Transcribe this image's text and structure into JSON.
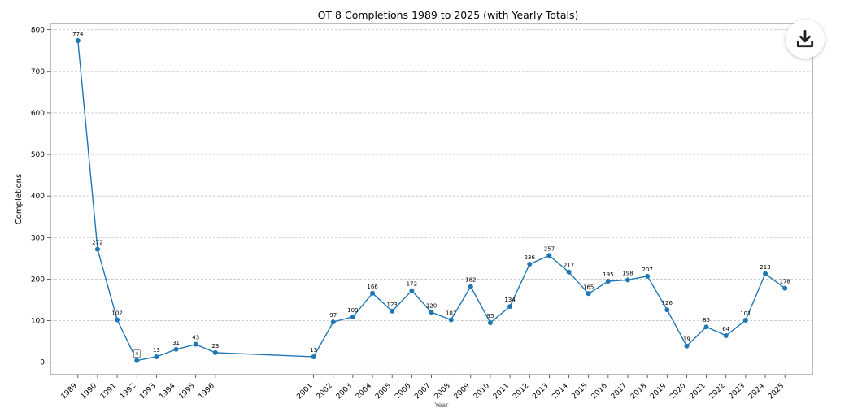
{
  "chart_data": {
    "type": "line",
    "title": "OT 8 Completions 1989 to 2025 (with Yearly Totals)",
    "xlabel": "Year",
    "ylabel": "Completions",
    "x": [
      1989,
      1990,
      1991,
      1992,
      1993,
      1994,
      1995,
      1996,
      2001,
      2002,
      2003,
      2004,
      2005,
      2006,
      2007,
      2008,
      2009,
      2010,
      2011,
      2012,
      2013,
      2014,
      2015,
      2016,
      2017,
      2018,
      2019,
      2020,
      2021,
      2022,
      2023,
      2024,
      2025
    ],
    "values": [
      774,
      272,
      102,
      4,
      13,
      31,
      43,
      23,
      13,
      97,
      109,
      166,
      123,
      172,
      120,
      102,
      182,
      95,
      134,
      236,
      257,
      217,
      165,
      195,
      198,
      207,
      126,
      39,
      85,
      64,
      101,
      213,
      178
    ],
    "xlim": [
      1987.6,
      2026.4
    ],
    "ylim": [
      -30,
      815
    ],
    "yticks": [
      0,
      100,
      200,
      300,
      400,
      500,
      600,
      700,
      800
    ],
    "grid": "horizontal dashed",
    "line_color": "#1f77b4",
    "highlight": {
      "year": 1989,
      "color": "#d62728"
    },
    "min_marker": {
      "year": 1992,
      "style": "boxed label"
    }
  },
  "toolbar": {
    "download_icon": "download-icon"
  }
}
